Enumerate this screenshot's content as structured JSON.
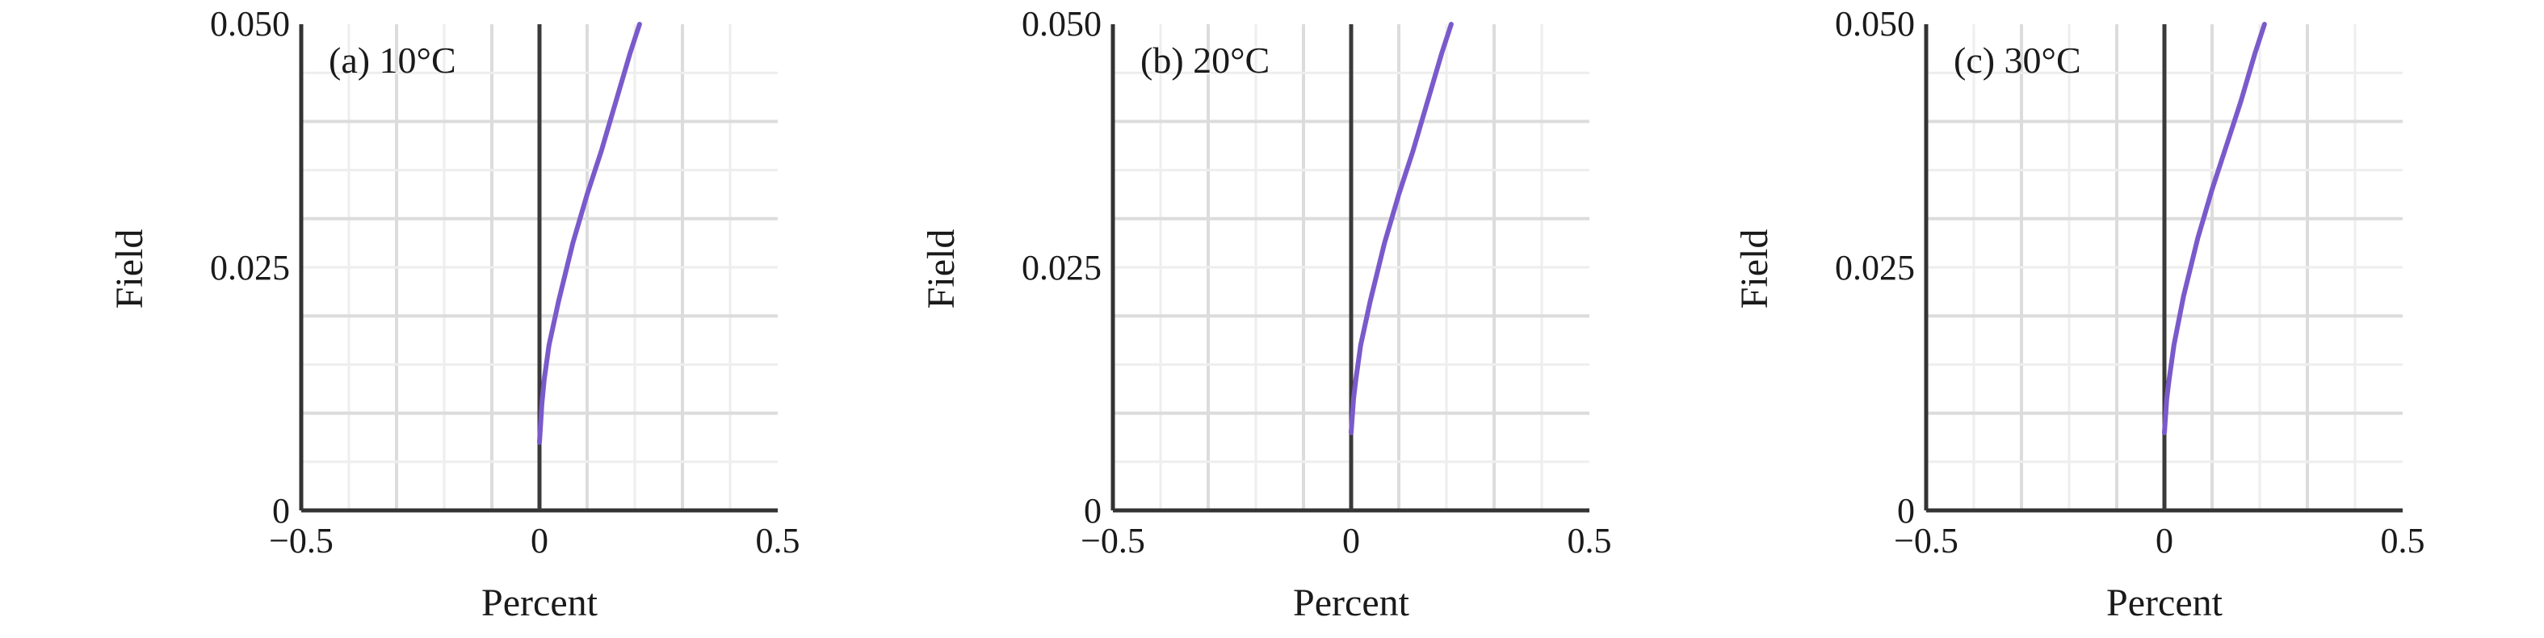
{
  "chart_data": [
    {
      "type": "line",
      "panel_label": "(a) 10°C",
      "xlabel": "Percent",
      "ylabel": "Field",
      "xlim": [
        -0.5,
        0.5
      ],
      "ylim": [
        0,
        0.05
      ],
      "xticks": [
        {
          "value": -0.5,
          "label": "−0.5"
        },
        {
          "value": 0,
          "label": "0"
        },
        {
          "value": 0.5,
          "label": "0.5"
        }
      ],
      "yticks": [
        {
          "value": 0,
          "label": "0"
        },
        {
          "value": 0.025,
          "label": "0.025"
        },
        {
          "value": 0.05,
          "label": "0.050"
        }
      ],
      "grid": true,
      "series": [
        {
          "color": "#7a5acb",
          "x": [
            0,
            0.005,
            0.01,
            0.02,
            0.04,
            0.07,
            0.1,
            0.13,
            0.16,
            0.19,
            0.21
          ],
          "y": [
            0.007,
            0.011,
            0.0135,
            0.017,
            0.0215,
            0.0275,
            0.0325,
            0.037,
            0.042,
            0.047,
            0.05
          ]
        }
      ]
    },
    {
      "type": "line",
      "panel_label": "(b) 20°C",
      "xlabel": "Percent",
      "ylabel": "Field",
      "xlim": [
        -0.5,
        0.5
      ],
      "ylim": [
        0,
        0.05
      ],
      "xticks": [
        {
          "value": -0.5,
          "label": "−0.5"
        },
        {
          "value": 0,
          "label": "0"
        },
        {
          "value": 0.5,
          "label": "0.5"
        }
      ],
      "yticks": [
        {
          "value": 0,
          "label": "0"
        },
        {
          "value": 0.025,
          "label": "0.025"
        },
        {
          "value": 0.05,
          "label": "0.050"
        }
      ],
      "grid": true,
      "series": [
        {
          "color": "#7a5acb",
          "x": [
            0,
            0.005,
            0.01,
            0.02,
            0.04,
            0.07,
            0.1,
            0.13,
            0.16,
            0.19,
            0.21
          ],
          "y": [
            0.008,
            0.0115,
            0.0135,
            0.017,
            0.0215,
            0.0275,
            0.0325,
            0.037,
            0.042,
            0.047,
            0.05
          ]
        }
      ]
    },
    {
      "type": "line",
      "panel_label": "(c) 30°C",
      "xlabel": "Percent",
      "ylabel": "Field",
      "xlim": [
        -0.5,
        0.5
      ],
      "ylim": [
        0,
        0.05
      ],
      "xticks": [
        {
          "value": -0.5,
          "label": "−0.5"
        },
        {
          "value": 0,
          "label": "0"
        },
        {
          "value": 0.5,
          "label": "0.5"
        }
      ],
      "yticks": [
        {
          "value": 0,
          "label": "0"
        },
        {
          "value": 0.025,
          "label": "0.025"
        },
        {
          "value": 0.05,
          "label": "0.050"
        }
      ],
      "grid": true,
      "series": [
        {
          "color": "#7a5acb",
          "x": [
            0,
            0.005,
            0.01,
            0.02,
            0.04,
            0.07,
            0.1,
            0.13,
            0.16,
            0.19,
            0.21
          ],
          "y": [
            0.008,
            0.0115,
            0.0135,
            0.017,
            0.022,
            0.028,
            0.033,
            0.0375,
            0.042,
            0.047,
            0.05
          ]
        }
      ]
    }
  ]
}
